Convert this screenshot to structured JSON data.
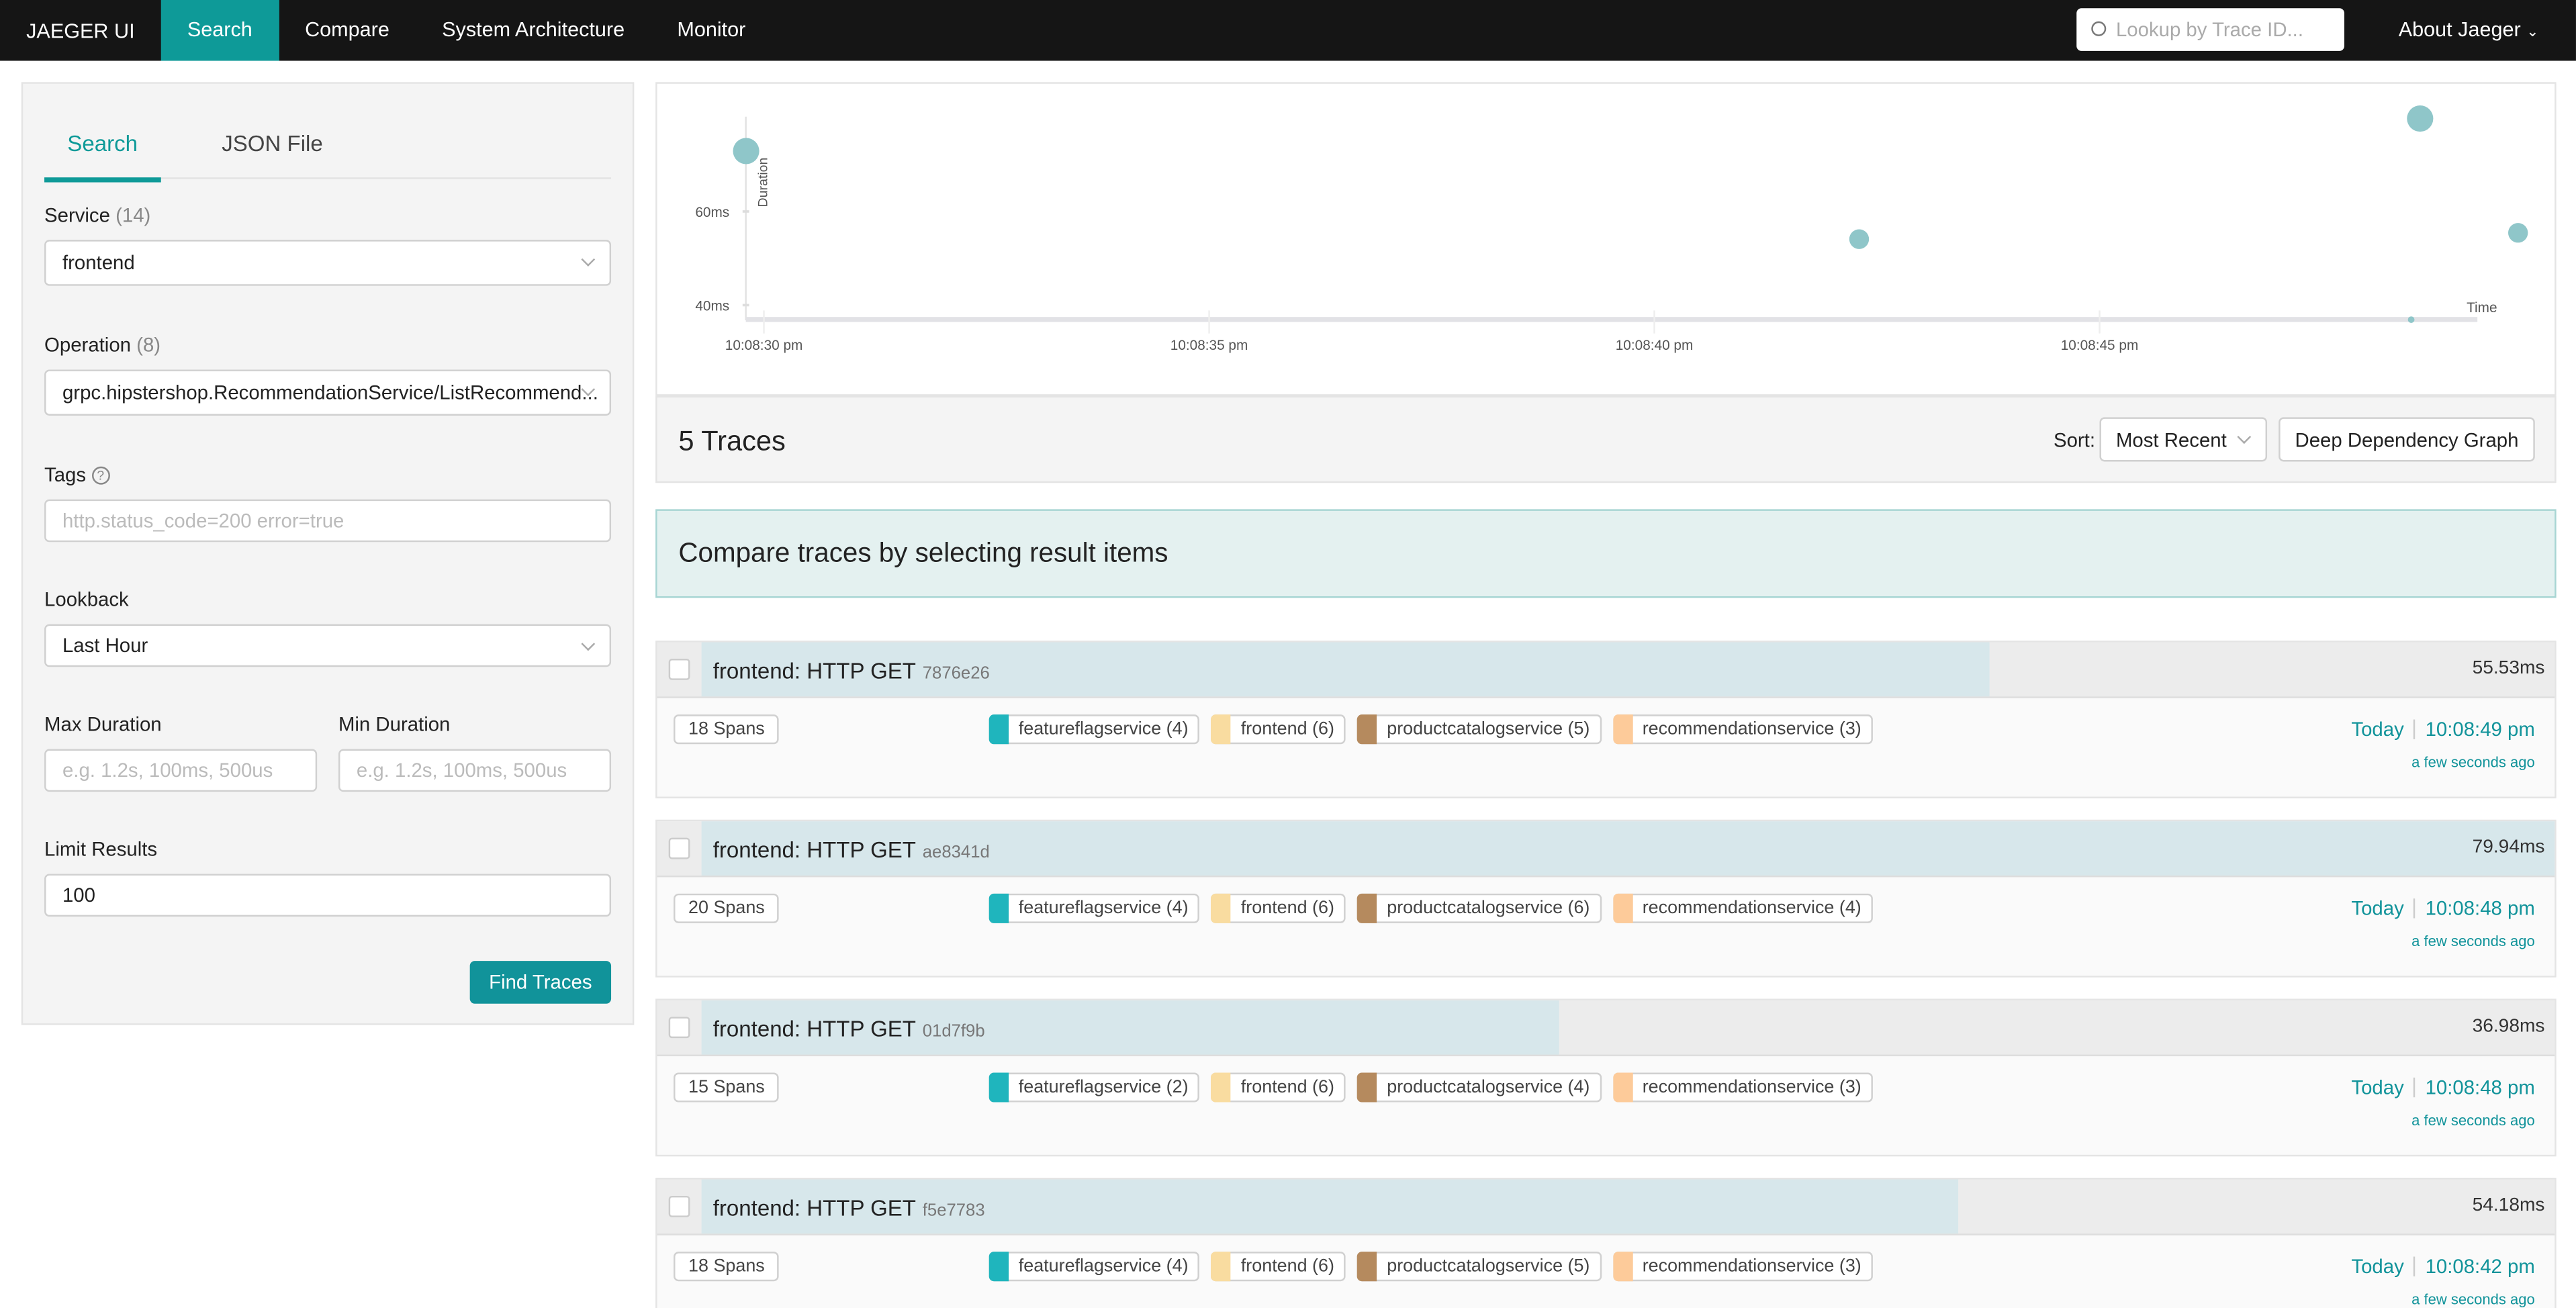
{
  "nav": {
    "brand": "JAEGER UI",
    "items": [
      "Search",
      "Compare",
      "System Architecture",
      "Monitor"
    ],
    "lookup_placeholder": "Lookup by Trace ID...",
    "about": "About Jaeger"
  },
  "search": {
    "tabs": [
      "Search",
      "JSON File"
    ],
    "service_label": "Service",
    "service_count": "(14)",
    "service_value": "frontend",
    "operation_label": "Operation",
    "operation_count": "(8)",
    "operation_value": "grpc.hipstershop.RecommendationService/ListRecommend...",
    "tags_label": "Tags",
    "tags_placeholder": "http.status_code=200 error=true",
    "lookback_label": "Lookback",
    "lookback_value": "Last Hour",
    "max_label": "Max Duration",
    "max_placeholder": "e.g. 1.2s, 100ms, 500us",
    "min_label": "Min Duration",
    "min_placeholder": "e.g. 1.2s, 100ms, 500us",
    "limit_label": "Limit Results",
    "limit_value": "100",
    "find": "Find Traces"
  },
  "chart_data": {
    "type": "scatter",
    "ylabel": "Duration",
    "xlabel": "Time",
    "y_ticks": [
      "40ms",
      "60ms"
    ],
    "x_ticks": [
      "10:08:30 pm",
      "10:08:35 pm",
      "10:08:40 pm",
      "10:08:45 pm"
    ],
    "point_color": "#8fc6c9",
    "points": [
      {
        "time": "10:08:29.8",
        "duration_ms": 73
      },
      {
        "time": "10:08:42.3",
        "duration_ms": 54.18
      },
      {
        "time": "10:08:48.5",
        "duration_ms": 36.98
      },
      {
        "time": "10:08:48.6",
        "duration_ms": 79.94
      },
      {
        "time": "10:08:49.7",
        "duration_ms": 55.53
      }
    ]
  },
  "results": {
    "count": "5 Traces",
    "sort_label": "Sort:",
    "sort_value": "Most Recent",
    "ddg": "Deep Dependency Graph",
    "compare_msg": "Compare traces by selecting result items"
  },
  "service_colors": {
    "featureflagservice": "#1fb5bd",
    "frontend": "#f9dca0",
    "productcatalogservice": "#b58a5e",
    "recommendationservice": "#fdcb9a"
  },
  "traces": [
    {
      "name": "frontend: HTTP GET",
      "id": "7876e26",
      "duration": "55.53ms",
      "fill_pct": 69.5,
      "spans": "18 Spans",
      "services": [
        "featureflagservice (4)",
        "frontend (6)",
        "productcatalogservice (5)",
        "recommendationservice (3)"
      ],
      "day": "Today",
      "time": "10:08:49 pm",
      "ago": "a few seconds ago"
    },
    {
      "name": "frontend: HTTP GET",
      "id": "ae8341d",
      "duration": "79.94ms",
      "fill_pct": 100,
      "spans": "20 Spans",
      "services": [
        "featureflagservice (4)",
        "frontend (6)",
        "productcatalogservice (6)",
        "recommendationservice (4)"
      ],
      "day": "Today",
      "time": "10:08:48 pm",
      "ago": "a few seconds ago"
    },
    {
      "name": "frontend: HTTP GET",
      "id": "01d7f9b",
      "duration": "36.98ms",
      "fill_pct": 46.3,
      "spans": "15 Spans",
      "services": [
        "featureflagservice (2)",
        "frontend (6)",
        "productcatalogservice (4)",
        "recommendationservice (3)"
      ],
      "day": "Today",
      "time": "10:08:48 pm",
      "ago": "a few seconds ago"
    },
    {
      "name": "frontend: HTTP GET",
      "id": "f5e7783",
      "duration": "54.18ms",
      "fill_pct": 67.8,
      "spans": "18 Spans",
      "services": [
        "featureflagservice (4)",
        "frontend (6)",
        "productcatalogservice (5)",
        "recommendationservice (3)"
      ],
      "day": "Today",
      "time": "10:08:42 pm",
      "ago": "a few seconds ago"
    }
  ]
}
